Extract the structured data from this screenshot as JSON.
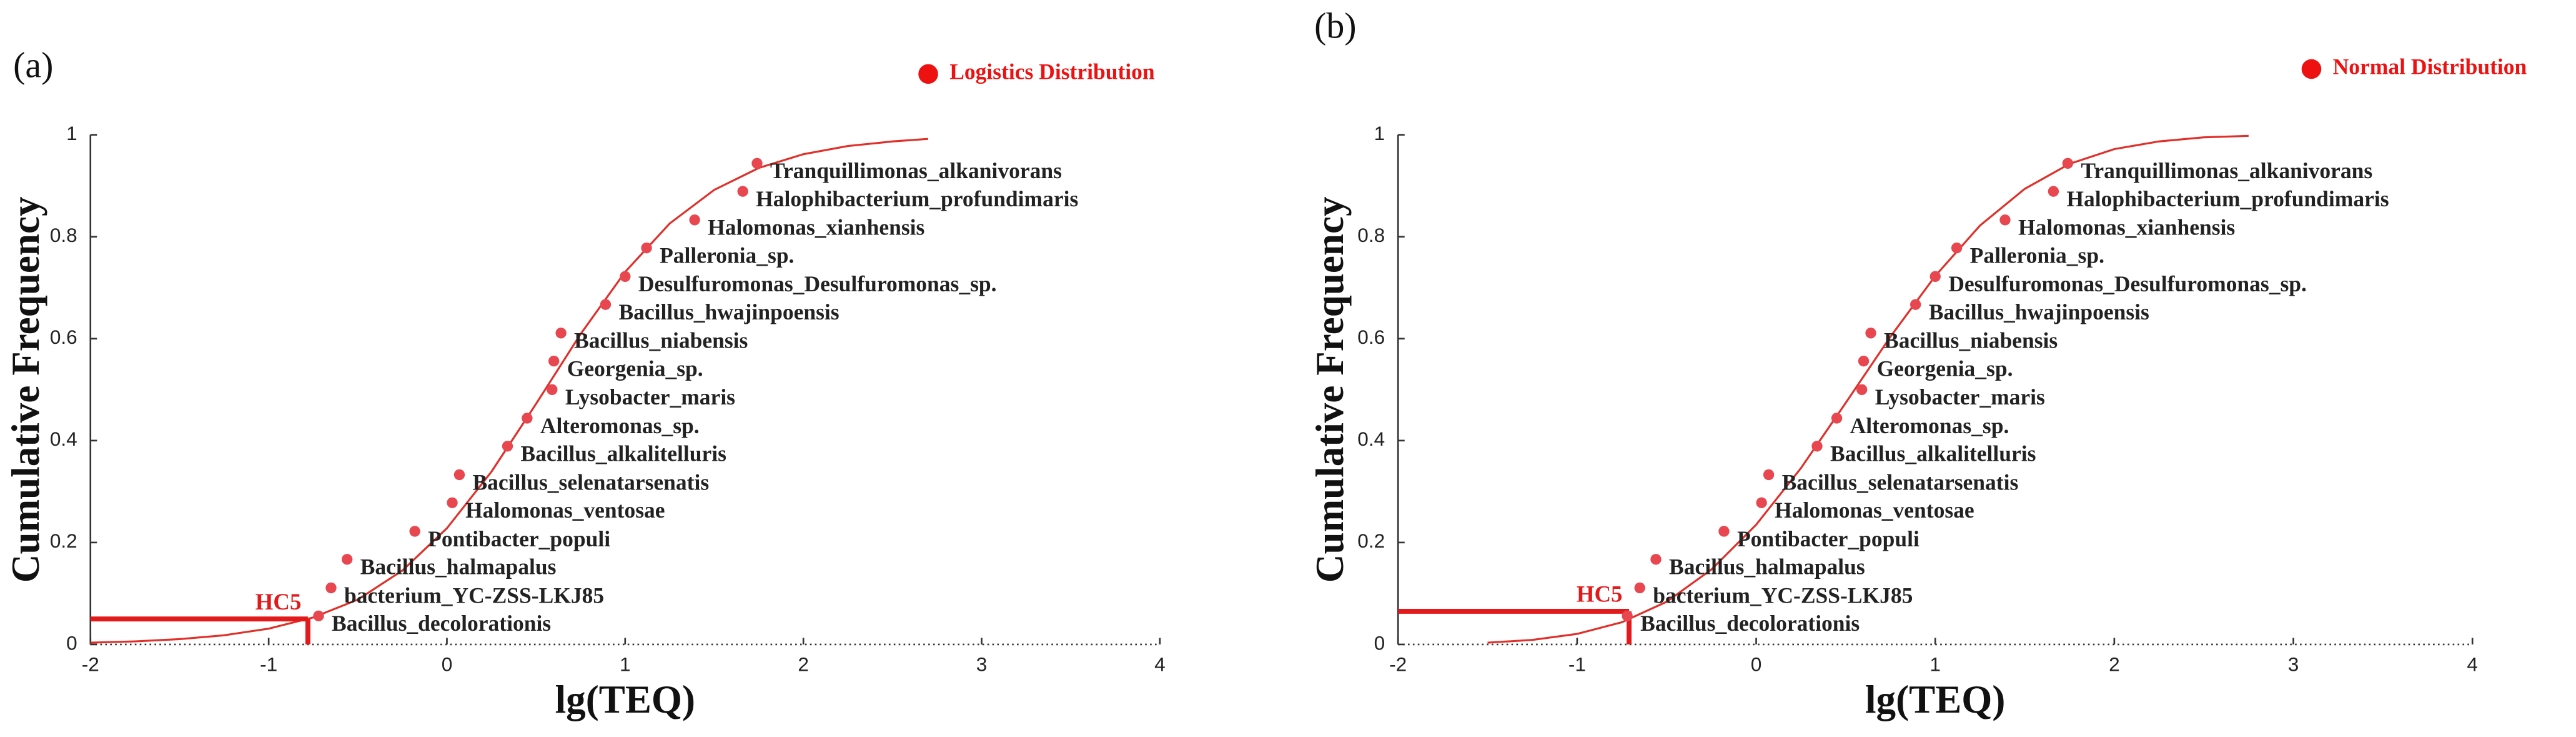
{
  "chart_data": [
    {
      "type": "scatter",
      "panel_label": "(a)",
      "xlabel": "lg(TEQ)",
      "ylabel": "Cumulative Frequency",
      "xlim": [
        -2,
        4
      ],
      "ylim": [
        0,
        1
      ],
      "xticks": [
        -2,
        -1,
        0,
        1,
        2,
        3,
        4
      ],
      "yticks": [
        0,
        0.2,
        0.4,
        0.6,
        0.8,
        1
      ],
      "series": [
        {
          "name": "Logistics Distribution",
          "color": "#e8474f",
          "x": [
            -0.72,
            -0.65,
            -0.56,
            -0.18,
            0.03,
            0.07,
            0.34,
            0.45,
            0.59,
            0.6,
            0.64,
            0.89,
            1.0,
            1.12,
            1.39,
            1.66,
            1.74
          ],
          "values": [
            0.056,
            0.111,
            0.167,
            0.222,
            0.278,
            0.333,
            0.389,
            0.444,
            0.5,
            0.556,
            0.611,
            0.667,
            0.722,
            0.778,
            0.833,
            0.889,
            0.944
          ],
          "point_labels": [
            "Bacillus_decolorationis",
            "bacterium_YC-ZSS-LKJ85",
            "Bacillus_halmapalus",
            "Pontibacter_populi",
            "Halomonas_ventosae",
            "Bacillus_selenatarsenatis",
            "Bacillus_alkalitelluris",
            "Alteromonas_sp.",
            "Lysobacter_maris",
            "Georgenia_sp.",
            "Bacillus_niabensis",
            "Bacillus_hwajinpoensis",
            "Desulfuromonas_Desulfuromonas_sp.",
            "Palleronia_sp.",
            "Halomonas_xianhensis",
            "Halophibacterium_profundimaris",
            "Tranquillimonas_alkanivorans"
          ]
        }
      ],
      "curve": {
        "color": "#e0302a",
        "x": [
          -2,
          -1.75,
          -1.5,
          -1.25,
          -1,
          -0.75,
          -0.5,
          -0.25,
          0,
          0.25,
          0.5,
          0.75,
          1,
          1.25,
          1.5,
          1.75,
          2,
          2.25,
          2.5,
          2.7
        ],
        "values": [
          0.0035,
          0.006,
          0.0104,
          0.018,
          0.031,
          0.053,
          0.088,
          0.145,
          0.228,
          0.339,
          0.472,
          0.609,
          0.731,
          0.826,
          0.892,
          0.935,
          0.962,
          0.978,
          0.987,
          0.992
        ]
      },
      "hc5": {
        "label": "HC5",
        "x": -0.78,
        "y": 0.05
      }
    },
    {
      "type": "scatter",
      "panel_label": "(b)",
      "xlabel": "lg(TEQ)",
      "ylabel": "Cumulative Frequency",
      "xlim": [
        -2,
        4
      ],
      "ylim": [
        0,
        1
      ],
      "xticks": [
        -2,
        -1,
        0,
        1,
        2,
        3,
        4
      ],
      "yticks": [
        0,
        0.2,
        0.4,
        0.6,
        0.8,
        1
      ],
      "series": [
        {
          "name": "Normal Distribution",
          "color": "#e8474f",
          "x": [
            -0.72,
            -0.65,
            -0.56,
            -0.18,
            0.03,
            0.07,
            0.34,
            0.45,
            0.59,
            0.6,
            0.64,
            0.89,
            1.0,
            1.12,
            1.39,
            1.66,
            1.74
          ],
          "values": [
            0.056,
            0.111,
            0.167,
            0.222,
            0.278,
            0.333,
            0.389,
            0.444,
            0.5,
            0.556,
            0.611,
            0.667,
            0.722,
            0.778,
            0.833,
            0.889,
            0.944
          ],
          "point_labels": [
            "Bacillus_decolorationis",
            "bacterium_YC-ZSS-LKJ85",
            "Bacillus_halmapalus",
            "Pontibacter_populi",
            "Halomonas_ventosae",
            "Bacillus_selenatarsenatis",
            "Bacillus_alkalitelluris",
            "Alteromonas_sp.",
            "Lysobacter_maris",
            "Georgenia_sp.",
            "Bacillus_niabensis",
            "Bacillus_hwajinpoensis",
            "Desulfuromonas_Desulfuromonas_sp.",
            "Palleronia_sp.",
            "Halomonas_xianhensis",
            "Halophibacterium_profundimaris",
            "Tranquillimonas_alkanivorans"
          ]
        }
      ],
      "curve": {
        "color": "#e0302a",
        "x": [
          -1.5,
          -1.25,
          -1,
          -0.75,
          -0.5,
          -0.25,
          0,
          0.25,
          0.5,
          0.75,
          1,
          1.25,
          1.5,
          1.75,
          2,
          2.25,
          2.5,
          2.75
        ],
        "values": [
          0.0035,
          0.0089,
          0.0207,
          0.0436,
          0.0838,
          0.147,
          0.235,
          0.346,
          0.474,
          0.604,
          0.723,
          0.822,
          0.894,
          0.943,
          0.972,
          0.987,
          0.995,
          0.998
        ]
      },
      "hc5": {
        "label": "HC5",
        "x": -0.71,
        "y": 0.065
      }
    }
  ]
}
